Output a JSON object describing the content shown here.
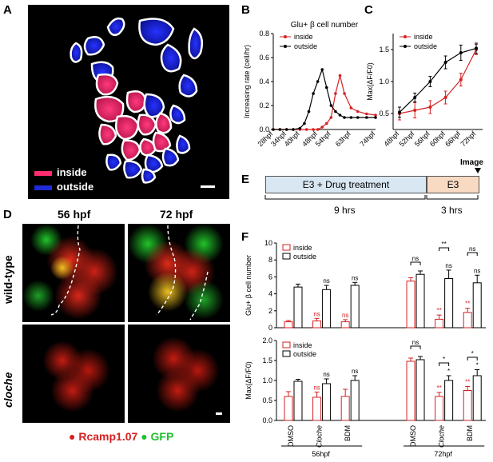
{
  "panels": {
    "A": {
      "label": "A",
      "legend": [
        {
          "name": "inside",
          "color": "#ff2d6f"
        },
        {
          "name": "outside",
          "color": "#1f2bd6"
        }
      ]
    },
    "B": {
      "label": "B"
    },
    "C": {
      "label": "C"
    },
    "D": {
      "label": "D",
      "col_labels": [
        "56 hpf",
        "72 hpf"
      ],
      "row_labels": [
        "wild-type",
        "cloche"
      ],
      "legend": [
        {
          "name": "Rcamp1.07",
          "color": "#d62020"
        },
        {
          "name": "GFP",
          "color": "#1fbf2f"
        }
      ]
    },
    "E": {
      "label": "E",
      "box1": "E3 + Drug treatment",
      "box2": "E3",
      "dur1": "9 hrs",
      "dur2": "3 hrs",
      "image": "Image"
    },
    "F": {
      "label": "F"
    }
  },
  "chart_data": [
    {
      "id": "B",
      "type": "line",
      "title": "Glu+ β cell number",
      "ylabel": "Increasing rate (cell/hr)",
      "xlabel": "",
      "ylim": [
        0,
        0.8
      ],
      "yticks": [
        "0.0",
        "0.2",
        "0.4",
        "0.6",
        "0.8"
      ],
      "categories": [
        "28hpf",
        "34hpf",
        "40hpf",
        "48hpf",
        "54hpf",
        "63hpf",
        "74hpf"
      ],
      "series": [
        {
          "name": "inside",
          "color": "#d62020",
          "points": [
            [
              28,
              0
            ],
            [
              31,
              0
            ],
            [
              34,
              0
            ],
            [
              37,
              0
            ],
            [
              40,
              0
            ],
            [
              43,
              0
            ],
            [
              46,
              0
            ],
            [
              48,
              0
            ],
            [
              50,
              0.02
            ],
            [
              52,
              0.05
            ],
            [
              54,
              0.1
            ],
            [
              56,
              0.3
            ],
            [
              58,
              0.45
            ],
            [
              60,
              0.3
            ],
            [
              63,
              0.18
            ],
            [
              66,
              0.15
            ],
            [
              70,
              0.13
            ],
            [
              74,
              0.12
            ]
          ]
        },
        {
          "name": "outside",
          "color": "#000000",
          "points": [
            [
              28,
              0
            ],
            [
              31,
              0
            ],
            [
              34,
              0
            ],
            [
              37,
              0
            ],
            [
              40,
              0.01
            ],
            [
              42,
              0.05
            ],
            [
              44,
              0.15
            ],
            [
              46,
              0.3
            ],
            [
              48,
              0.4
            ],
            [
              50,
              0.5
            ],
            [
              52,
              0.35
            ],
            [
              54,
              0.2
            ],
            [
              56,
              0.15
            ],
            [
              58,
              0.12
            ],
            [
              60,
              0.1
            ],
            [
              63,
              0.1
            ],
            [
              66,
              0.1
            ],
            [
              70,
              0.1
            ],
            [
              74,
              0.1
            ]
          ]
        }
      ]
    },
    {
      "id": "C",
      "type": "line",
      "ylabel": "Max(ΔF/F0)",
      "ylim": [
        0.25,
        1.75
      ],
      "yticks": [
        "0.5",
        "1.0",
        "1.5"
      ],
      "categories": [
        "48hpf",
        "52hpf",
        "56hpf",
        "60hpf",
        "66hpf",
        "72hpf"
      ],
      "series": [
        {
          "name": "inside",
          "color": "#d62020",
          "values": [
            0.5,
            0.55,
            0.6,
            0.75,
            1.03,
            1.5
          ],
          "errors": [
            0.1,
            0.12,
            0.1,
            0.1,
            0.1,
            0.08
          ]
        },
        {
          "name": "outside",
          "color": "#000000",
          "values": [
            0.52,
            0.75,
            1.0,
            1.3,
            1.45,
            1.52
          ],
          "errors": [
            0.08,
            0.07,
            0.08,
            0.1,
            0.12,
            0.08
          ]
        }
      ]
    },
    {
      "id": "F1",
      "type": "bar",
      "ylabel": "Glu+ β cell number",
      "ylim": [
        0,
        10
      ],
      "yticks": [
        "0",
        "2",
        "4",
        "6",
        "8",
        "10"
      ],
      "groups": [
        "DMSO",
        "Cloche",
        "BDM",
        "DMSO",
        "Cloche",
        "BDM"
      ],
      "series": [
        {
          "name": "inside",
          "color": "#d62020",
          "values": [
            0.7,
            0.8,
            0.7,
            5.5,
            1.0,
            1.8
          ],
          "errors": [
            0.15,
            0.3,
            0.25,
            0.4,
            0.5,
            0.5
          ]
        },
        {
          "name": "outside",
          "color": "#000000",
          "values": [
            4.8,
            4.5,
            5.0,
            6.3,
            5.8,
            5.3
          ],
          "errors": [
            0.35,
            0.5,
            0.35,
            0.4,
            1.0,
            0.9
          ]
        }
      ],
      "annotations": [
        "ns",
        "ns",
        "ns",
        "ns",
        "ns",
        "ns",
        "**",
        "**",
        "**",
        "ns",
        "ns",
        "**",
        "**",
        "ns"
      ]
    },
    {
      "id": "F2",
      "type": "bar",
      "ylabel": "Max(ΔF/F0)",
      "ylim": [
        0,
        2
      ],
      "yticks": [
        "0.0",
        "0.5",
        "1.0",
        "1.5",
        "2.0"
      ],
      "groups": [
        "DMSO",
        "Cloche",
        "BDM",
        "DMSO",
        "Cloche",
        "BDM"
      ],
      "series": [
        {
          "name": "inside",
          "color": "#d62020",
          "values": [
            0.6,
            0.58,
            0.6,
            1.48,
            0.6,
            0.75
          ],
          "errors": [
            0.12,
            0.13,
            0.18,
            0.08,
            0.1,
            0.1
          ]
        },
        {
          "name": "outside",
          "color": "#000000",
          "values": [
            0.98,
            0.92,
            1.0,
            1.52,
            1.0,
            1.12
          ],
          "errors": [
            0.05,
            0.12,
            0.12,
            0.08,
            0.12,
            0.15
          ]
        }
      ],
      "annotations": [
        "ns",
        "ns",
        "ns",
        "ns",
        "ns",
        "ns",
        "ns",
        "*",
        "**",
        "*",
        "*",
        "**",
        "*"
      ]
    }
  ],
  "timepoints": [
    "56hpf",
    "72hpf"
  ]
}
